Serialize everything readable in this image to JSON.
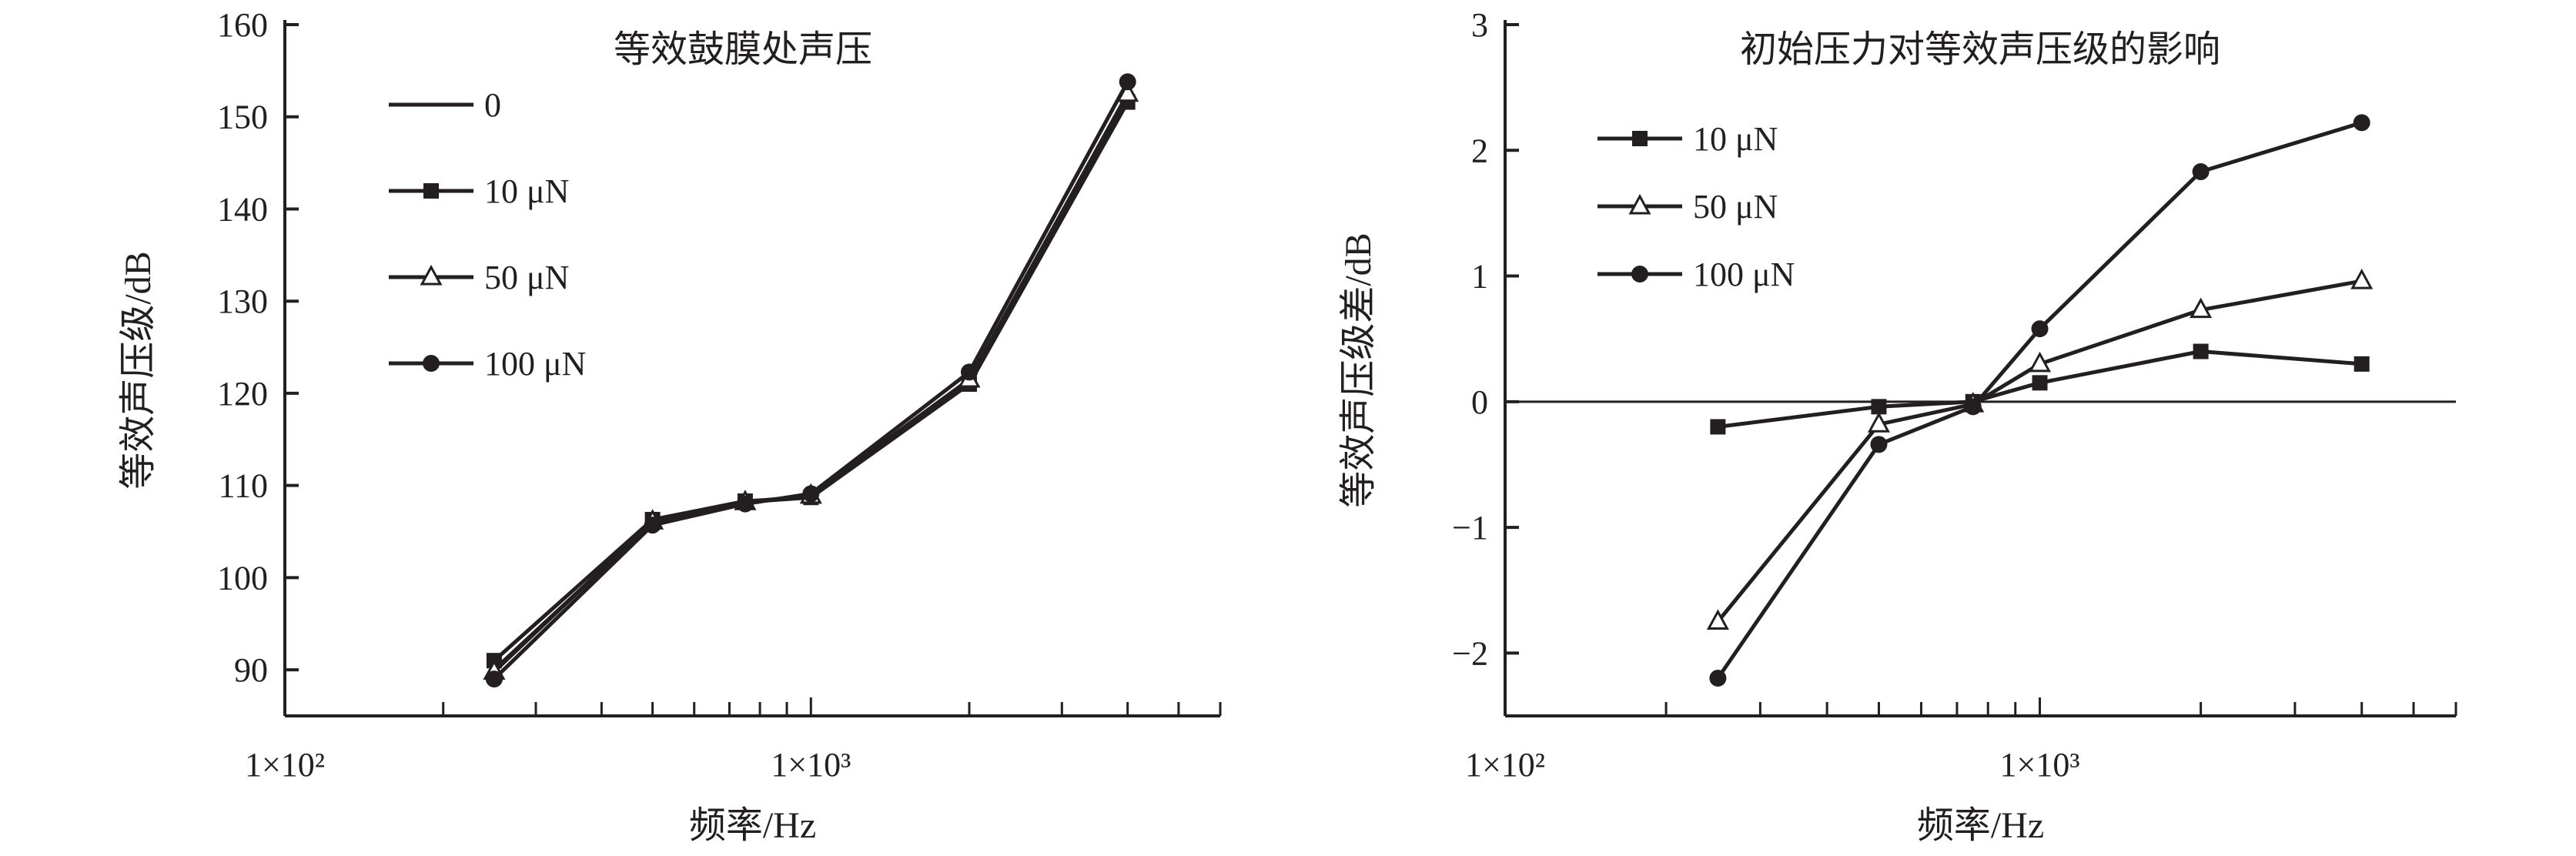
{
  "colors": {
    "ink": "#231f20",
    "background": "#ffffff"
  },
  "chart_data": [
    {
      "type": "line",
      "title": "等效鼓膜处声压",
      "xlabel": "频率/Hz",
      "ylabel": "等效声压级/dB",
      "xscale": "log",
      "xlim": [
        100,
        6000
      ],
      "ylim": [
        85,
        160
      ],
      "yticks": [
        90,
        100,
        110,
        120,
        130,
        140,
        150,
        160
      ],
      "xtick_labels": [
        {
          "value": 100,
          "label": "1×10²"
        },
        {
          "value": 1000,
          "label": "1×10³"
        }
      ],
      "x": [
        250,
        500,
        750,
        1000,
        2000,
        4000
      ],
      "grid": false,
      "legend": "top-left",
      "series": [
        {
          "name": "0",
          "marker": "none",
          "values": [
            90.0,
            106.0,
            108.2,
            108.7,
            121.2,
            152.0
          ]
        },
        {
          "name": "10 μN",
          "marker": "square",
          "values": [
            91.0,
            106.3,
            108.3,
            108.7,
            121.0,
            151.6
          ]
        },
        {
          "name": "50 μN",
          "marker": "triangle",
          "values": [
            89.8,
            106.1,
            108.2,
            108.9,
            121.5,
            152.5
          ]
        },
        {
          "name": "100 μN",
          "marker": "circle",
          "values": [
            89.0,
            105.7,
            108.0,
            109.1,
            122.3,
            153.8
          ]
        }
      ]
    },
    {
      "type": "line",
      "title": "初始压力对等效声压级的影响",
      "xlabel": "频率/Hz",
      "ylabel": "等效声压级差/dB",
      "xscale": "log",
      "xlim": [
        100,
        6000
      ],
      "ylim": [
        -2.5,
        3
      ],
      "yticks": [
        -2,
        -1,
        0,
        1,
        2,
        3
      ],
      "ytick_labels": [
        "−2",
        "−1",
        "0",
        "1",
        "2",
        "3"
      ],
      "xtick_labels": [
        {
          "value": 100,
          "label": "1×10²"
        },
        {
          "value": 1000,
          "label": "1×10³"
        }
      ],
      "x": [
        250,
        500,
        750,
        1000,
        2000,
        4000
      ],
      "reference_line": 0,
      "grid": false,
      "legend": "top-left",
      "series": [
        {
          "name": "10 μN",
          "marker": "square",
          "values": [
            -0.2,
            -0.04,
            0.0,
            0.15,
            0.4,
            0.3
          ]
        },
        {
          "name": "50 μN",
          "marker": "triangle",
          "values": [
            -1.75,
            -0.18,
            -0.02,
            0.3,
            0.73,
            0.96
          ]
        },
        {
          "name": "100 μN",
          "marker": "circle",
          "values": [
            -2.2,
            -0.34,
            -0.04,
            0.58,
            1.83,
            2.22
          ]
        }
      ]
    }
  ]
}
